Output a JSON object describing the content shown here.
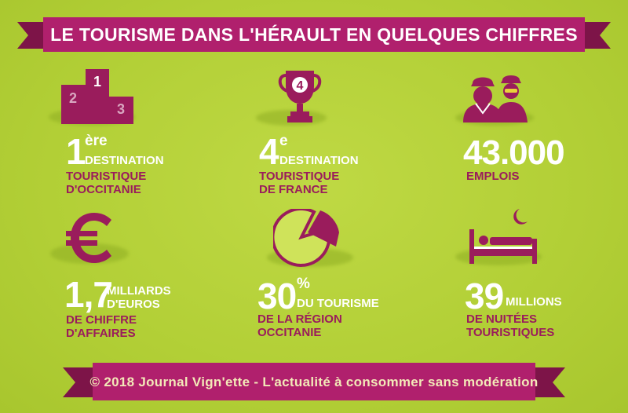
{
  "header": {
    "title": "LE TOURISME DANS L'HÉRAULT EN QUELQUES CHIFFRES"
  },
  "footer": {
    "credit": "© 2018 Journal Vign'ette - L'actualité à consommer sans modération"
  },
  "colors": {
    "background": "#b6d23a",
    "accent": "#9a1c5c",
    "ribbon": "#b0206d",
    "text": "#ffffff"
  },
  "stats": [
    {
      "icon": "podium-icon",
      "podium": [
        "1",
        "2",
        "3"
      ],
      "big": "1",
      "sup": "ère",
      "line1": "DESTINATION",
      "line2": "TOURISTIQUE",
      "line3": "D'OCCITANIE"
    },
    {
      "icon": "trophy-icon",
      "trophy": "4",
      "big": "4",
      "sup": "e",
      "line1": "DESTINATION",
      "line2": "TOURISTIQUE",
      "line3": "DE FRANCE"
    },
    {
      "icon": "workers-icon",
      "big": "43.000",
      "line2": "EMPLOIS"
    },
    {
      "icon": "euro-icon",
      "big": "1,7",
      "line1a": "MILLIARDS",
      "line1b": "D'EUROS",
      "line2": "DE CHIFFRE",
      "line3": "D'AFFAIRES"
    },
    {
      "icon": "pie-chart-icon",
      "big": "30",
      "sup": "%",
      "line1": "DU TOURISME",
      "line2": "DE LA RÉGION",
      "line3": "OCCITANIE"
    },
    {
      "icon": "bed-moon-icon",
      "big": "39",
      "line1": "MILLIONS",
      "line2": "DE NUITÉES",
      "line3": "TOURISTIQUES"
    }
  ]
}
